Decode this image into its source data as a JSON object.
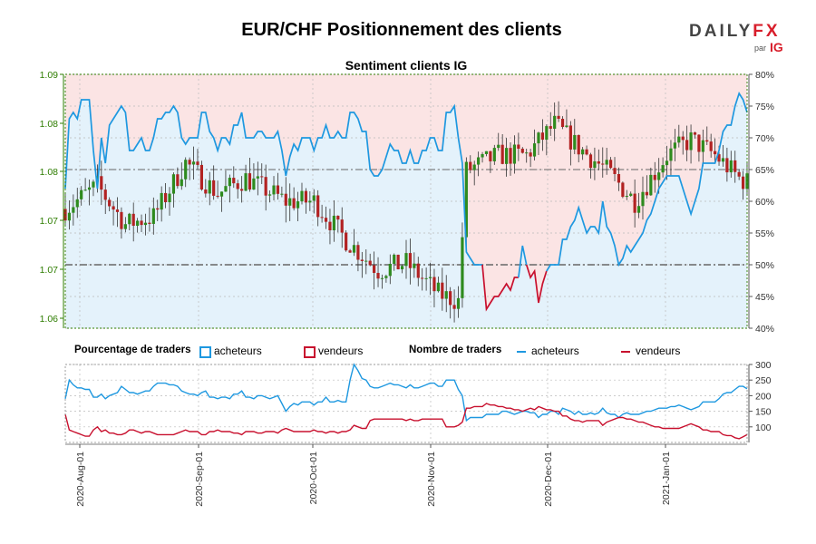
{
  "title": "EUR/CHF Positionnement des clients",
  "subtitle": "Sentiment clients IG",
  "logo": {
    "brand_left": "DAILY",
    "brand_right": "FX",
    "par": "par",
    "ig": "IG"
  },
  "colors": {
    "buyers": "#1e98e0",
    "sellers": "#c8102e",
    "long_fill": "#e4f2fb",
    "short_fill": "#fbe4e4",
    "axis_green": "#2e7d00",
    "candle_up": "#2e8b1e",
    "candle_down": "#b22222"
  },
  "legend": {
    "pct_heading": "Pourcentage de traders",
    "pct_buyers": "acheteurs",
    "pct_sellers": "vendeurs",
    "count_heading": "Nombre de traders",
    "count_buyers": "acheteurs",
    "count_sellers": "vendeurs"
  },
  "chart_data": [
    {
      "type": "candlestick",
      "title": "Sentiment clients IG",
      "y_left_ticks": [
        "1.09",
        "1.08",
        "1.08",
        "1.07",
        "1.07",
        "1.06"
      ],
      "y_right_ticks": [
        "80%",
        "75%",
        "70%",
        "65%",
        "60%",
        "55%",
        "50%",
        "45%",
        "40%"
      ],
      "y_right_range": [
        40,
        80
      ],
      "x_ticks": [
        "2020-Aug-01",
        "2020-Sep-01",
        "2020-Oct-01",
        "2020-Nov-01",
        "2020-Dec-01",
        "2021-Jan-01"
      ],
      "reference_lines": [
        50,
        65
      ],
      "series": [
        {
          "name": "acheteurs",
          "unit": "%",
          "values": [
            62,
            73,
            74,
            73,
            76,
            76,
            76,
            68,
            62,
            70,
            66,
            72,
            73,
            74,
            75,
            74,
            68,
            68,
            69,
            70,
            68,
            68,
            70,
            73,
            73,
            74,
            74,
            75,
            74,
            70,
            69,
            70,
            70,
            70,
            74,
            74,
            71,
            70,
            68,
            70,
            70,
            69,
            72,
            72,
            74,
            70,
            70,
            70,
            71,
            71,
            70,
            70,
            70,
            71,
            68,
            64,
            67,
            69,
            68,
            70,
            70,
            70,
            68,
            70,
            70,
            72,
            70,
            70,
            71,
            70,
            70,
            74,
            74,
            73,
            71,
            71,
            65,
            64,
            64,
            65,
            67,
            69,
            68,
            68,
            66,
            66,
            68,
            66,
            66,
            68,
            68,
            70,
            70,
            68,
            68,
            74,
            74,
            75,
            70,
            66,
            52,
            51,
            50,
            50,
            50,
            43,
            44,
            45,
            45,
            46,
            47,
            46,
            48,
            48,
            53,
            50,
            48,
            49,
            44,
            47,
            49,
            50,
            50,
            50,
            54,
            54,
            56,
            57,
            59,
            57,
            55,
            56,
            56,
            55,
            60,
            56,
            55,
            53,
            50,
            51,
            53,
            52,
            53,
            54,
            55,
            57,
            58,
            60,
            62,
            63,
            64,
            64,
            64,
            64,
            62,
            60,
            58,
            60,
            62,
            66,
            66,
            66,
            66,
            68,
            71,
            72,
            72,
            75,
            77,
            76,
            74
          ]
        },
        {
          "name": "vendeurs",
          "unit": "%",
          "values": [
            38,
            27,
            26,
            27,
            24,
            24,
            24,
            32,
            38,
            30,
            34,
            28,
            27,
            26,
            25,
            26,
            32,
            32,
            31,
            30,
            32,
            32,
            30,
            27,
            27,
            26,
            26,
            25,
            26,
            30,
            31,
            30,
            30,
            30,
            26,
            26,
            29,
            30,
            32,
            30,
            30,
            31,
            28,
            28,
            26,
            30,
            30,
            30,
            29,
            29,
            30,
            30,
            30,
            29,
            32,
            36,
            33,
            31,
            32,
            30,
            30,
            30,
            32,
            30,
            30,
            28,
            30,
            30,
            29,
            30,
            30,
            26,
            26,
            27,
            29,
            29,
            35,
            36,
            36,
            35,
            33,
            31,
            32,
            32,
            34,
            34,
            32,
            34,
            34,
            32,
            32,
            30,
            30,
            32,
            32,
            26,
            26,
            25,
            30,
            34,
            48,
            49,
            50,
            50,
            50,
            57,
            56,
            55,
            55,
            54,
            53,
            54,
            52,
            52,
            47,
            50,
            52,
            51,
            56,
            53,
            51,
            50,
            50,
            50,
            46,
            46,
            44,
            43,
            41,
            43,
            45,
            44,
            44,
            45,
            40,
            44,
            45,
            47,
            50,
            49,
            47,
            48,
            47,
            46,
            45,
            43,
            42,
            40,
            38,
            37,
            36,
            36,
            36,
            36,
            38,
            40,
            42,
            40,
            38,
            34,
            34,
            34,
            34,
            32,
            29,
            28,
            28,
            25,
            23,
            24,
            26
          ]
        }
      ]
    },
    {
      "type": "line",
      "title": "Nombre de traders",
      "y_ticks": [
        "300",
        "250",
        "200",
        "150",
        "100"
      ],
      "y_range": [
        50,
        300
      ],
      "x_ticks": [
        "2020-Aug-01",
        "2020-Sep-01",
        "2020-Oct-01",
        "2020-Nov-01",
        "2020-Dec-01",
        "2021-Jan-01"
      ],
      "series": [
        {
          "name": "acheteurs",
          "values": [
            190,
            250,
            235,
            225,
            225,
            220,
            220,
            195,
            195,
            205,
            190,
            200,
            205,
            210,
            230,
            220,
            210,
            210,
            205,
            210,
            215,
            215,
            230,
            240,
            240,
            240,
            235,
            235,
            230,
            215,
            210,
            205,
            205,
            200,
            210,
            215,
            195,
            195,
            190,
            195,
            195,
            190,
            205,
            205,
            215,
            195,
            195,
            190,
            200,
            200,
            195,
            190,
            195,
            200,
            175,
            150,
            165,
            175,
            170,
            180,
            180,
            180,
            170,
            180,
            180,
            195,
            180,
            180,
            185,
            180,
            180,
            250,
            300,
            280,
            255,
            250,
            230,
            225,
            225,
            230,
            235,
            240,
            235,
            235,
            230,
            225,
            235,
            225,
            225,
            230,
            235,
            240,
            240,
            230,
            230,
            250,
            250,
            250,
            220,
            200,
            120,
            130,
            130,
            130,
            130,
            140,
            140,
            140,
            140,
            150,
            150,
            145,
            140,
            145,
            150,
            150,
            145,
            145,
            130,
            140,
            140,
            150,
            150,
            140,
            160,
            155,
            150,
            140,
            150,
            140,
            140,
            145,
            140,
            145,
            160,
            145,
            140,
            140,
            130,
            140,
            145,
            140,
            140,
            140,
            145,
            150,
            150,
            155,
            160,
            160,
            160,
            165,
            165,
            170,
            165,
            160,
            155,
            160,
            165,
            180,
            180,
            180,
            180,
            190,
            205,
            210,
            210,
            220,
            230,
            230,
            222
          ]
        },
        {
          "name": "vendeurs",
          "values": [
            140,
            90,
            85,
            80,
            75,
            70,
            70,
            90,
            100,
            85,
            90,
            80,
            80,
            75,
            75,
            80,
            90,
            90,
            85,
            80,
            85,
            85,
            80,
            75,
            75,
            75,
            75,
            75,
            80,
            85,
            90,
            85,
            85,
            85,
            75,
            75,
            85,
            85,
            90,
            85,
            85,
            85,
            80,
            80,
            75,
            85,
            85,
            85,
            80,
            80,
            85,
            85,
            85,
            80,
            90,
            95,
            90,
            85,
            85,
            85,
            85,
            85,
            90,
            85,
            85,
            80,
            85,
            85,
            80,
            85,
            85,
            90,
            105,
            100,
            95,
            95,
            120,
            125,
            125,
            125,
            125,
            125,
            125,
            125,
            125,
            120,
            125,
            120,
            120,
            125,
            125,
            125,
            125,
            125,
            125,
            100,
            100,
            100,
            105,
            115,
            160,
            160,
            165,
            165,
            165,
            175,
            170,
            170,
            165,
            165,
            160,
            160,
            155,
            155,
            150,
            155,
            160,
            155,
            165,
            160,
            155,
            155,
            150,
            150,
            135,
            135,
            125,
            120,
            120,
            115,
            120,
            120,
            120,
            120,
            105,
            115,
            120,
            125,
            130,
            130,
            125,
            125,
            120,
            115,
            115,
            110,
            105,
            100,
            100,
            95,
            95,
            95,
            95,
            95,
            100,
            105,
            110,
            105,
            100,
            90,
            90,
            85,
            85,
            85,
            75,
            72,
            72,
            65,
            62,
            68,
            75
          ]
        }
      ]
    }
  ]
}
